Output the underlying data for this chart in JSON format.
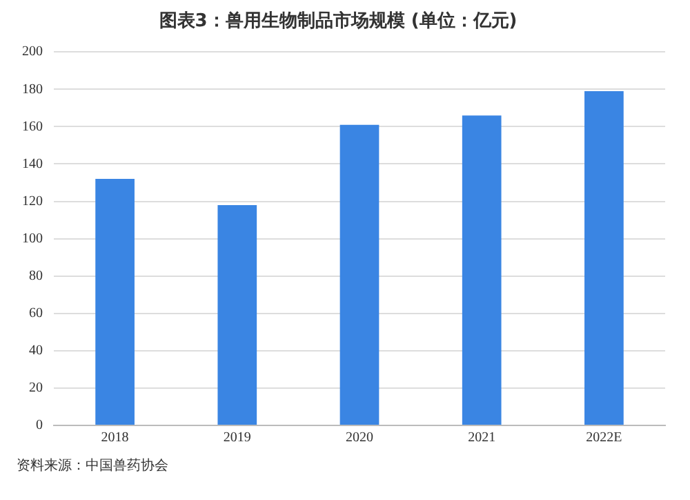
{
  "chart_data": {
    "type": "bar",
    "title": "图表3：兽用生物制品市场规模 (单位：亿元)",
    "categories": [
      "2018",
      "2019",
      "2020",
      "2021",
      "2022E"
    ],
    "values": [
      132,
      118,
      161,
      166,
      179
    ],
    "color": "#3a85e3",
    "ylim": [
      0,
      200
    ],
    "yticks": [
      0,
      20,
      40,
      60,
      80,
      100,
      120,
      140,
      160,
      180,
      200
    ],
    "grid": "y",
    "annotations": [
      "资料来源：中国兽药协会"
    ]
  }
}
